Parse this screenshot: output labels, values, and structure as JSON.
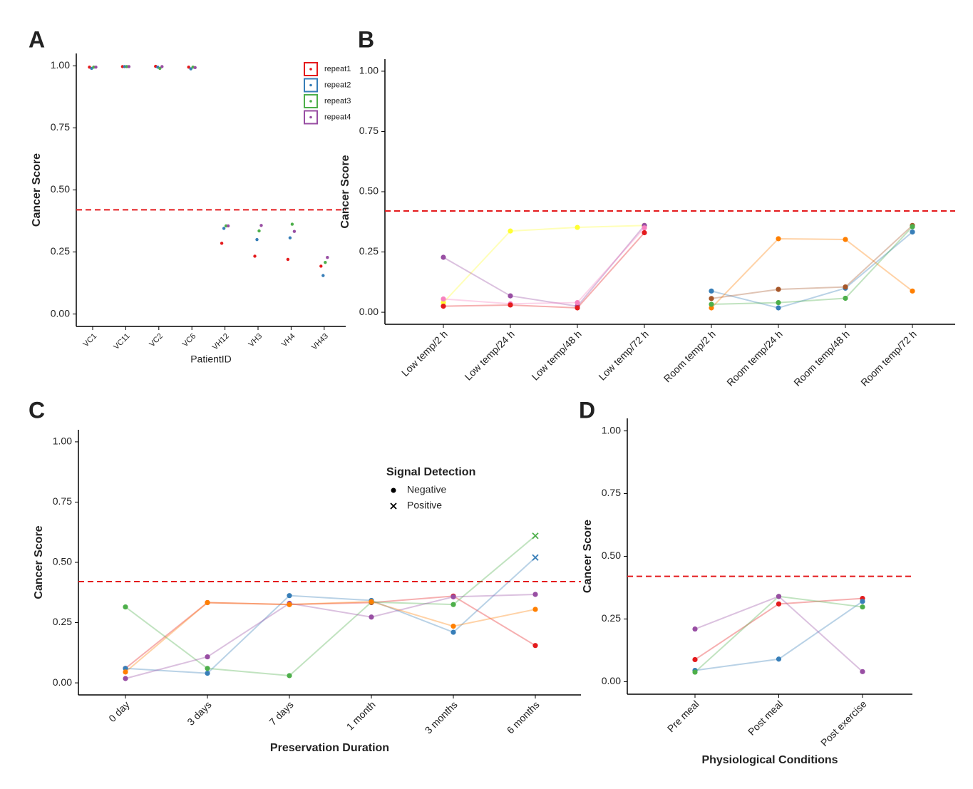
{
  "chart_data": [
    {
      "type": "scatter",
      "panel": "A",
      "ylabel": "Cancer Score",
      "xlabel": "PatientID",
      "categories": [
        "VC1",
        "VC11",
        "VC2",
        "VC6",
        "VH12",
        "VH3",
        "VH4",
        "VH43"
      ],
      "ylim": [
        -0.05,
        1.05
      ],
      "yticks": [
        {
          "value": 0,
          "label": "0.00"
        },
        {
          "value": 0.25,
          "label": "0.25"
        },
        {
          "value": 0.5,
          "label": "0.50"
        },
        {
          "value": 0.75,
          "label": "0.75"
        },
        {
          "value": 1,
          "label": "1.00"
        }
      ],
      "threshold": 0.42,
      "threshold_color": "#e41a1c",
      "legend": "top-right",
      "series": [
        {
          "name": "repeat1",
          "color": "#e41a1c",
          "values": [
            0.995,
            0.997,
            0.998,
            0.995,
            0.285,
            0.233,
            0.22,
            0.193
          ]
        },
        {
          "name": "repeat2",
          "color": "#377eb8",
          "values": [
            0.99,
            0.997,
            0.995,
            0.988,
            0.345,
            0.3,
            0.307,
            0.155
          ]
        },
        {
          "name": "repeat3",
          "color": "#4daf4a",
          "values": [
            0.995,
            0.997,
            0.99,
            0.995,
            0.355,
            0.335,
            0.362,
            0.208
          ]
        },
        {
          "name": "repeat4",
          "color": "#984ea3",
          "values": [
            0.995,
            0.997,
            0.997,
            0.993,
            0.355,
            0.357,
            0.333,
            0.228
          ]
        }
      ]
    },
    {
      "type": "line",
      "panel": "B",
      "ylabel": "Cancer Score",
      "categories": [
        "Low temp/2 h",
        "Low temp/24 h",
        "Low temp/48 h",
        "Low temp/72 h",
        "Room temp/2 h",
        "Room temp/24 h",
        "Room temp/48 h",
        "Room temp/72 h"
      ],
      "ylim": [
        -0.05,
        1.05
      ],
      "yticks": [
        {
          "value": 0,
          "label": "0.00"
        },
        {
          "value": 0.25,
          "label": "0.25"
        },
        {
          "value": 0.5,
          "label": "0.50"
        },
        {
          "value": 0.75,
          "label": "0.75"
        },
        {
          "value": 1,
          "label": "1.00"
        }
      ],
      "threshold": 0.42,
      "threshold_color": "#e41a1c",
      "series": [
        {
          "color": "#ffff33",
          "values": [
            0.04,
            0.337,
            0.352,
            0.36,
            null,
            null,
            null,
            null
          ]
        },
        {
          "color": "#984ea3",
          "values": [
            0.228,
            0.068,
            0.025,
            0.36,
            null,
            null,
            null,
            null
          ]
        },
        {
          "color": "#f781bf",
          "values": [
            0.055,
            0.035,
            0.04,
            0.35,
            null,
            null,
            null,
            null
          ]
        },
        {
          "color": "#e41a1c",
          "values": [
            0.025,
            0.03,
            0.018,
            0.33,
            null,
            null,
            null,
            null
          ]
        },
        {
          "color": "#377eb8",
          "values": [
            null,
            null,
            null,
            null,
            0.088,
            0.018,
            0.1,
            0.333
          ]
        },
        {
          "color": "#ff7f00",
          "values": [
            null,
            null,
            null,
            null,
            0.018,
            0.305,
            0.302,
            0.088
          ]
        },
        {
          "color": "#a65628",
          "values": [
            null,
            null,
            null,
            null,
            0.057,
            0.095,
            0.105,
            0.36
          ]
        },
        {
          "color": "#4daf4a",
          "values": [
            null,
            null,
            null,
            null,
            0.033,
            0.04,
            0.058,
            0.355
          ]
        }
      ]
    },
    {
      "type": "line",
      "panel": "C",
      "ylabel": "Cancer Score",
      "xlabel": "Preservation Duration",
      "categories": [
        "0 day",
        "3 days",
        "7 days",
        "1 month",
        "3 months",
        "6 months"
      ],
      "ylim": [
        -0.05,
        1.05
      ],
      "yticks": [
        {
          "value": 0,
          "label": "0.00"
        },
        {
          "value": 0.25,
          "label": "0.25"
        },
        {
          "value": 0.5,
          "label": "0.50"
        },
        {
          "value": 0.75,
          "label": "0.75"
        },
        {
          "value": 1,
          "label": "1.00"
        }
      ],
      "threshold": 0.42,
      "threshold_color": "#e41a1c",
      "legend_title": "Signal Detection",
      "legend_entries": [
        {
          "label": "Negative",
          "shape": "dot"
        },
        {
          "label": "Positive",
          "shape": "x"
        }
      ],
      "series": [
        {
          "color": "#e41a1c",
          "values": [
            0.06,
            0.333,
            0.325,
            0.333,
            0.36,
            0.155
          ],
          "shapes": [
            "dot",
            "dot",
            "dot",
            "dot",
            "dot",
            "dot"
          ]
        },
        {
          "color": "#377eb8",
          "values": [
            0.06,
            0.04,
            0.362,
            0.342,
            0.21,
            0.52
          ],
          "shapes": [
            "dot",
            "dot",
            "dot",
            "dot",
            "dot",
            "x"
          ]
        },
        {
          "color": "#4daf4a",
          "values": [
            0.315,
            0.06,
            0.03,
            0.335,
            0.325,
            0.61
          ],
          "shapes": [
            "dot",
            "dot",
            "dot",
            "dot",
            "dot",
            "x"
          ]
        },
        {
          "color": "#984ea3",
          "values": [
            0.018,
            0.108,
            0.33,
            0.273,
            0.357,
            0.367
          ],
          "shapes": [
            "dot",
            "dot",
            "dot",
            "dot",
            "dot",
            "dot"
          ]
        },
        {
          "color": "#ff7f00",
          "values": [
            0.045,
            0.333,
            0.325,
            0.337,
            0.235,
            0.305
          ],
          "shapes": [
            "dot",
            "dot",
            "dot",
            "dot",
            "dot",
            "dot"
          ]
        }
      ]
    },
    {
      "type": "line",
      "panel": "D",
      "ylabel": "Cancer Score",
      "xlabel": "Physiological Conditions",
      "categories": [
        "Pre meal",
        "Post meal",
        "Post exercise"
      ],
      "ylim": [
        -0.05,
        1.05
      ],
      "yticks": [
        {
          "value": 0,
          "label": "0.00"
        },
        {
          "value": 0.25,
          "label": "0.25"
        },
        {
          "value": 0.5,
          "label": "0.50"
        },
        {
          "value": 0.75,
          "label": "0.75"
        },
        {
          "value": 1,
          "label": "1.00"
        }
      ],
      "threshold": 0.42,
      "threshold_color": "#e41a1c",
      "series": [
        {
          "color": "#e41a1c",
          "values": [
            0.088,
            0.31,
            0.332
          ]
        },
        {
          "color": "#377eb8",
          "values": [
            0.045,
            0.09,
            0.32
          ]
        },
        {
          "color": "#4daf4a",
          "values": [
            0.038,
            0.34,
            0.298
          ]
        },
        {
          "color": "#984ea3",
          "values": [
            0.21,
            0.34,
            0.04
          ]
        }
      ]
    }
  ]
}
